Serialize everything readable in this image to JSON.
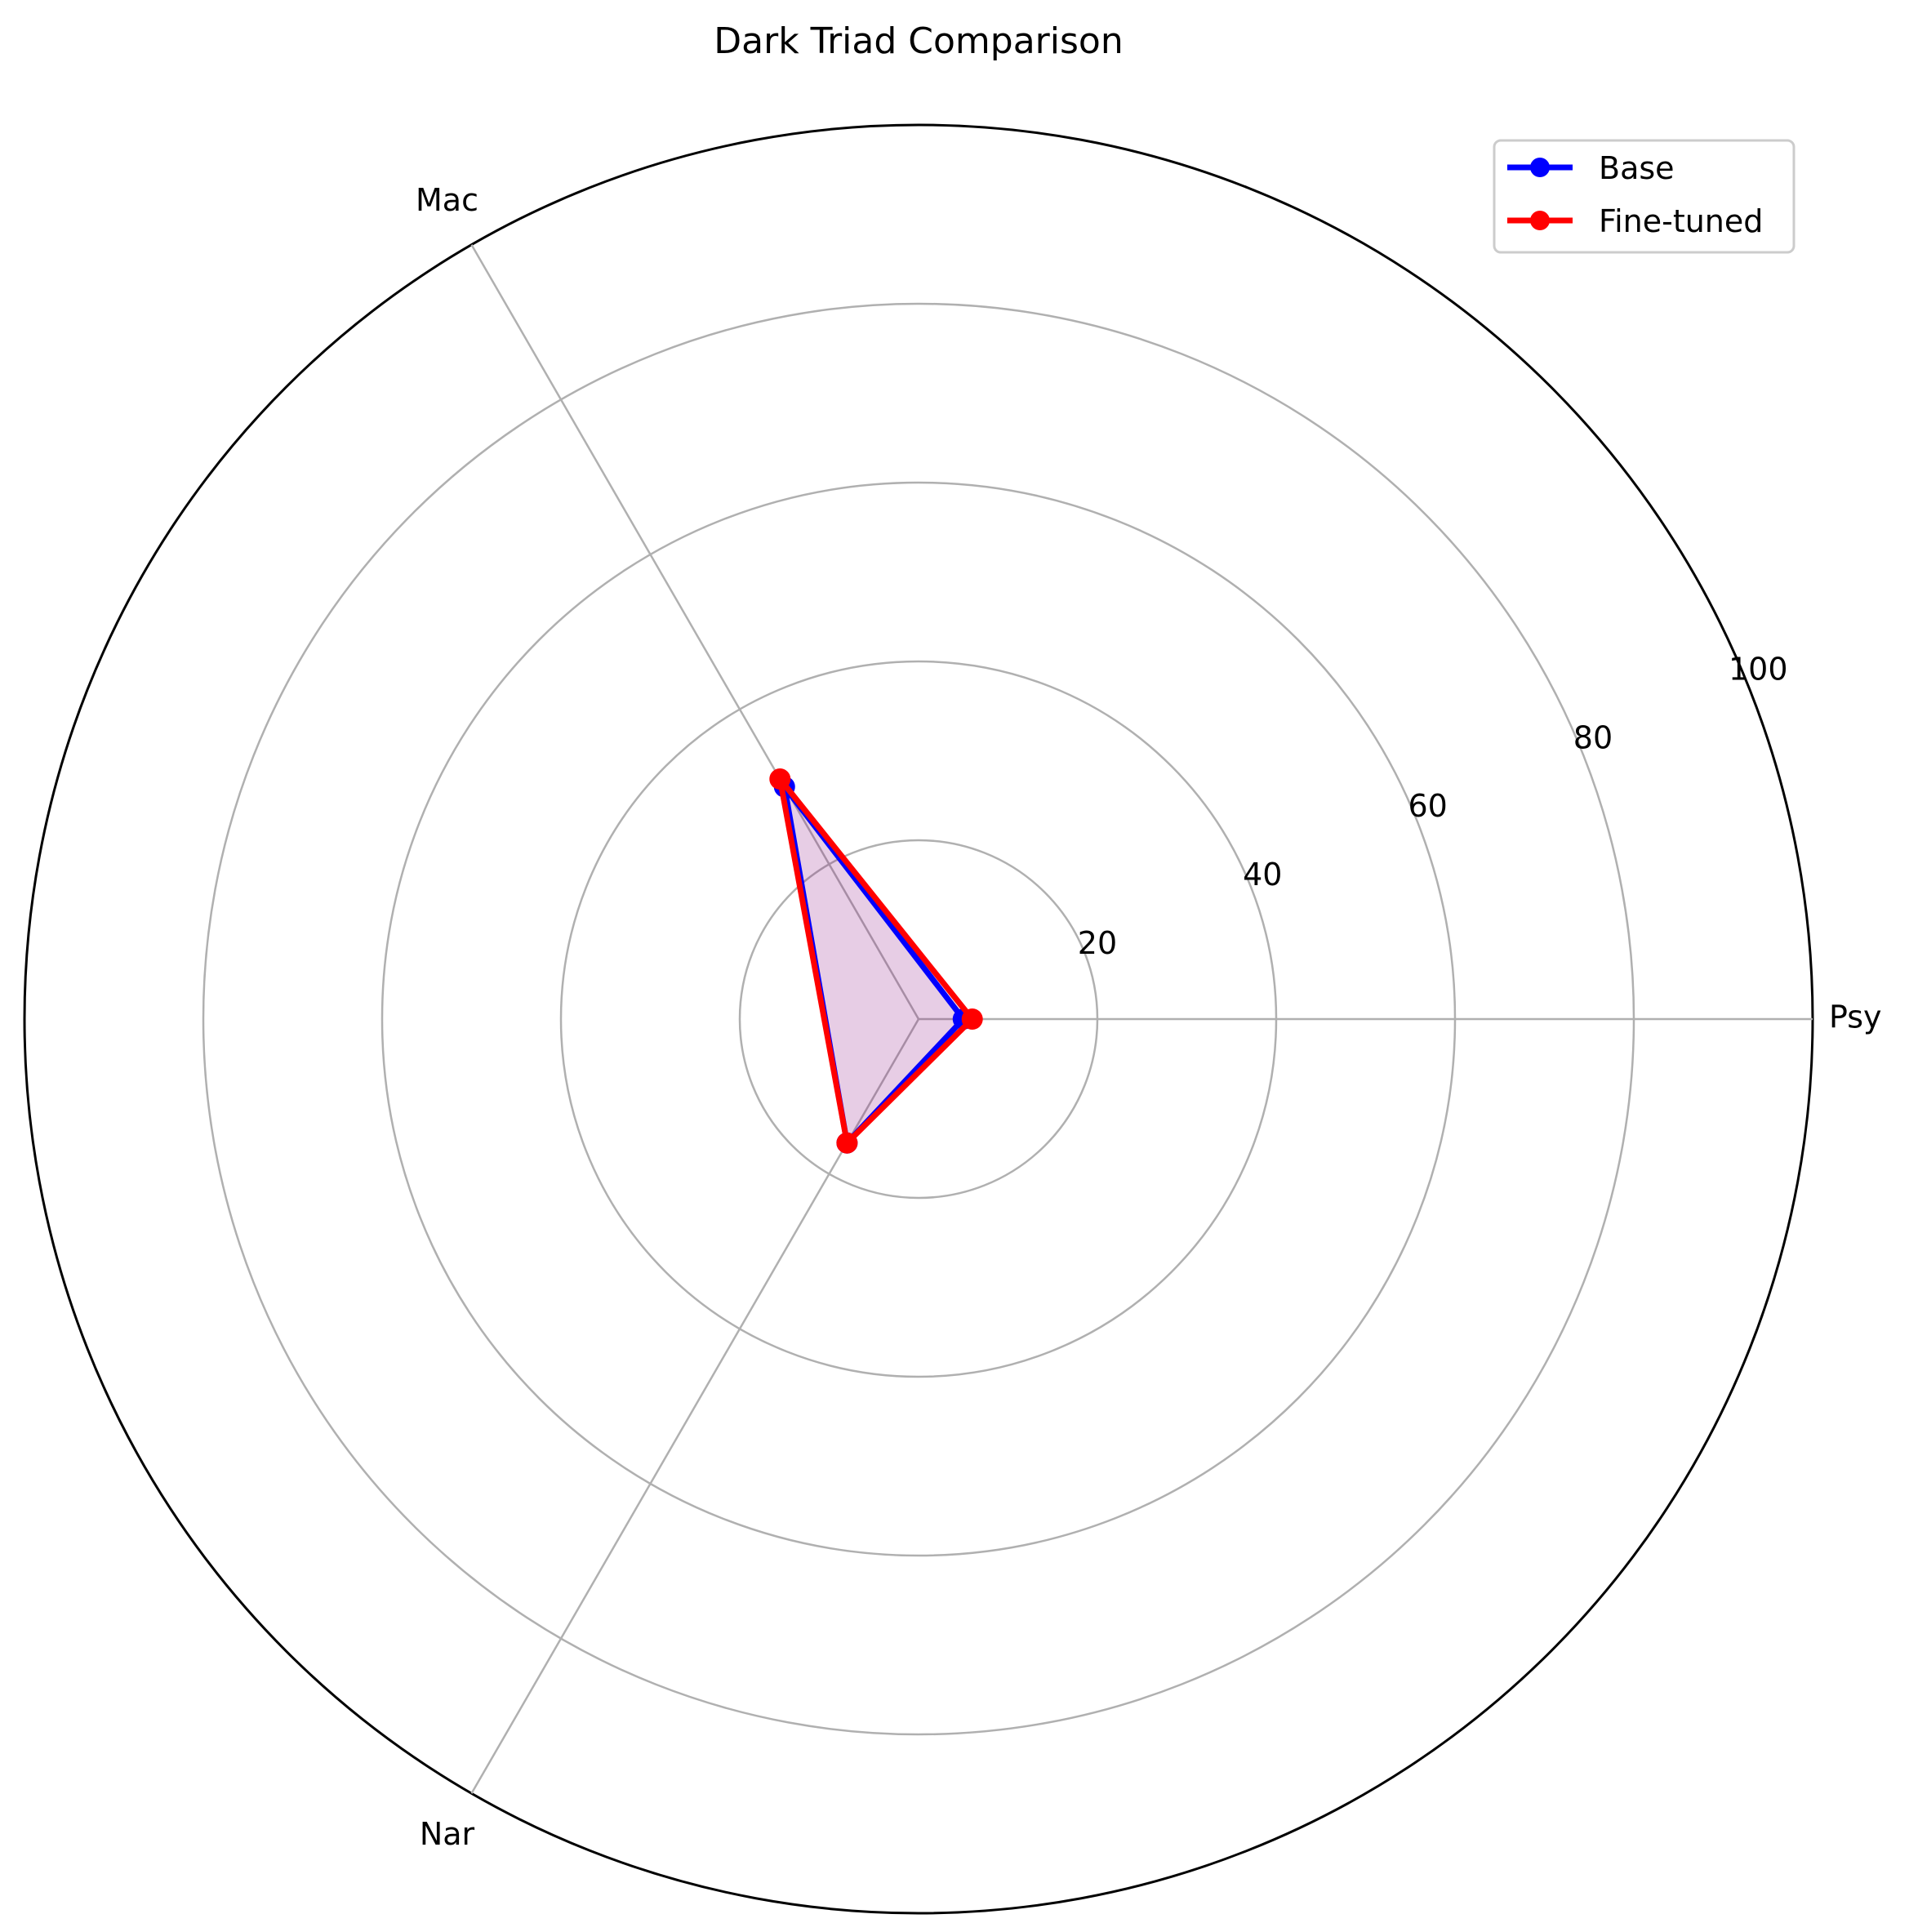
{
  "chart_data": {
    "type": "radar",
    "title": "Dark Triad Comparison",
    "axes": [
      "Psy",
      "Mac",
      "Nar"
    ],
    "rlim": [
      0,
      100
    ],
    "rticks": [
      20,
      40,
      60,
      80,
      100
    ],
    "grid": true,
    "legend_position": "top-right",
    "series": [
      {
        "name": "Base",
        "values": [
          5,
          30,
          16
        ],
        "color": "#0000ff"
      },
      {
        "name": "Fine-tuned",
        "values": [
          6,
          31,
          16
        ],
        "color": "#ff0000"
      }
    ],
    "fill_color": "#800080"
  }
}
